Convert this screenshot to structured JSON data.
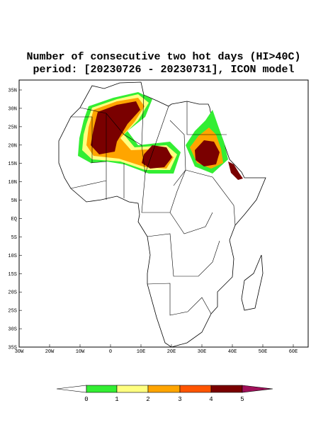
{
  "header": {
    "title_lines": [
      "Number of consecutive two hot days (HI>40C)",
      "period: [20230726 - 20230731], ICON model"
    ]
  },
  "map": {
    "lat_labels": [
      "35N",
      "30N",
      "25N",
      "20N",
      "15N",
      "10N",
      "5N",
      "EQ",
      "5S",
      "10S",
      "15S",
      "20S",
      "25S",
      "30S",
      "35S"
    ],
    "lon_labels": [
      "30W",
      "20W",
      "10W",
      "0",
      "10E",
      "20E",
      "30E",
      "40E",
      "50E",
      "60E"
    ]
  },
  "colorbar": {
    "labels": [
      "0",
      "1",
      "2",
      "3",
      "4",
      "5"
    ]
  }
}
